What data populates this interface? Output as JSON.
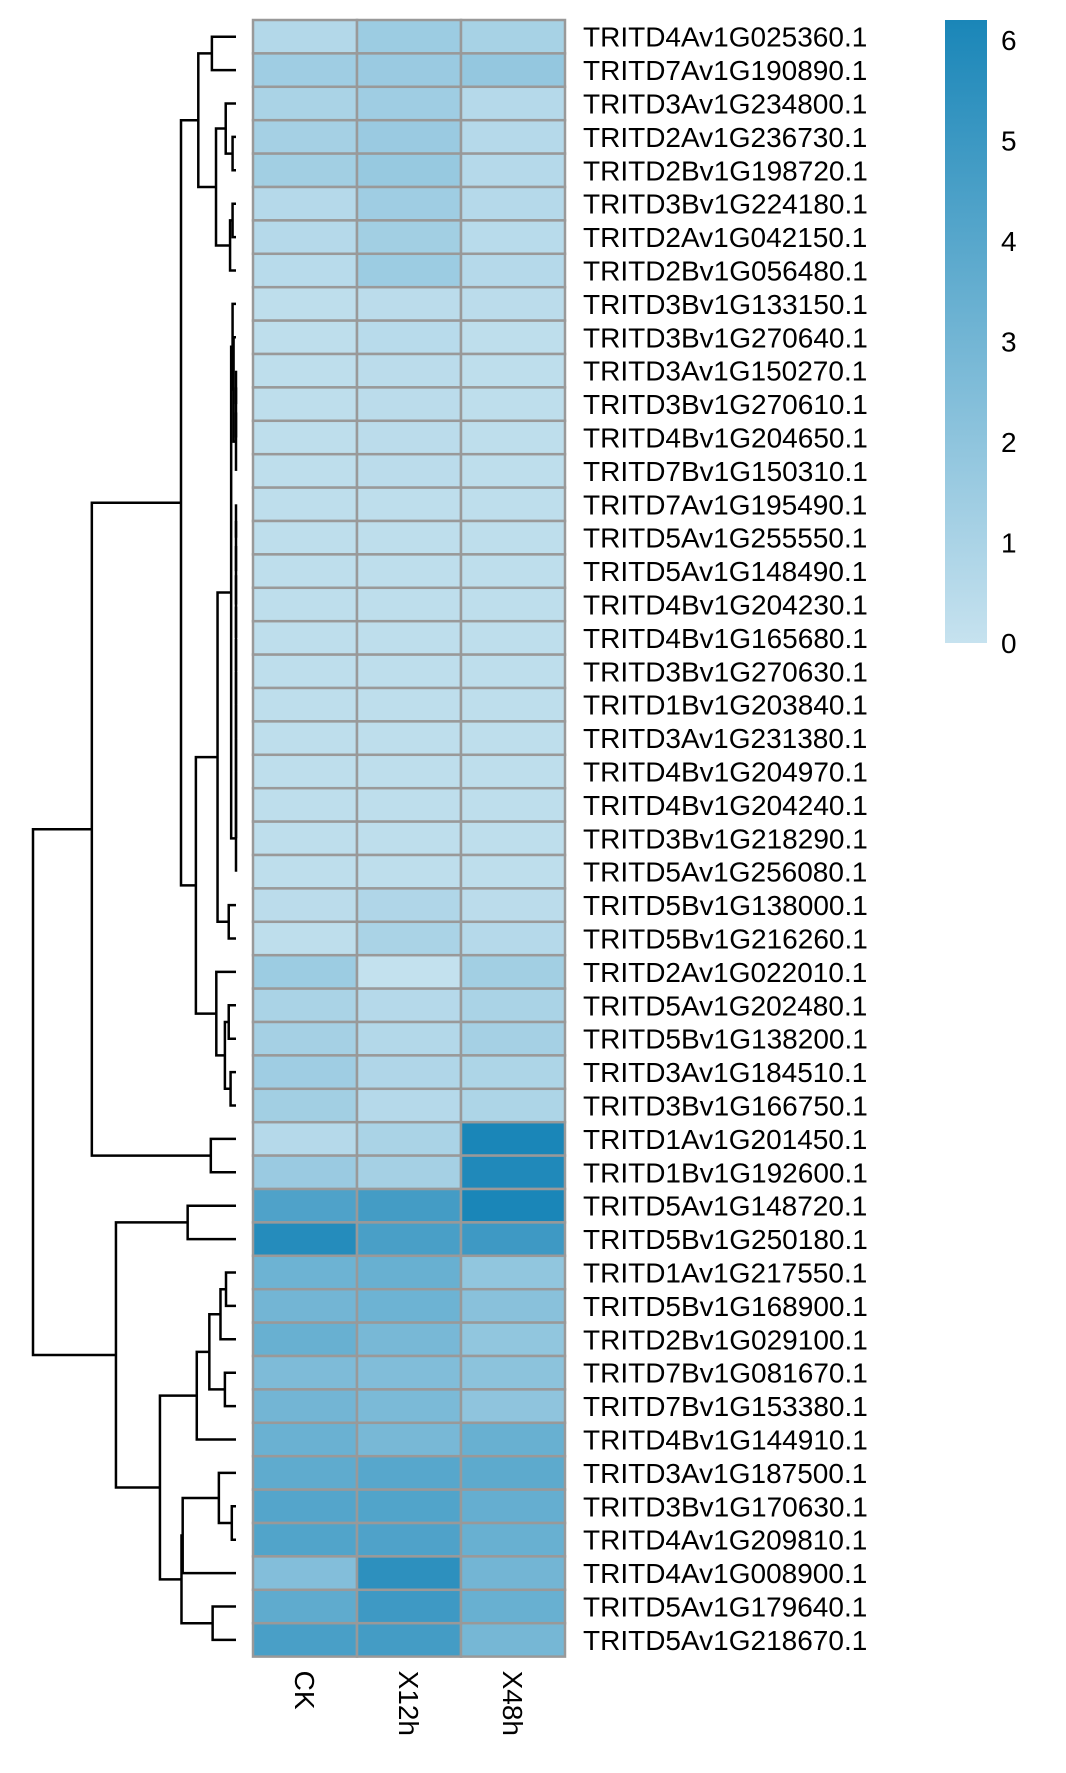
{
  "chart_data": {
    "type": "heatmap",
    "columns": [
      "CK",
      "X12h",
      "X48h"
    ],
    "rows": [
      "TRITD4Av1G025360.1",
      "TRITD7Av1G190890.1",
      "TRITD3Av1G234800.1",
      "TRITD2Av1G236730.1",
      "TRITD2Bv1G198720.1",
      "TRITD3Bv1G224180.1",
      "TRITD2Av1G042150.1",
      "TRITD2Bv1G056480.1",
      "TRITD3Bv1G133150.1",
      "TRITD3Bv1G270640.1",
      "TRITD3Av1G150270.1",
      "TRITD3Bv1G270610.1",
      "TRITD4Bv1G204650.1",
      "TRITD7Bv1G150310.1",
      "TRITD7Av1G195490.1",
      "TRITD5Av1G255550.1",
      "TRITD5Av1G148490.1",
      "TRITD4Bv1G204230.1",
      "TRITD4Bv1G165680.1",
      "TRITD3Bv1G270630.1",
      "TRITD1Bv1G203840.1",
      "TRITD3Av1G231380.1",
      "TRITD4Bv1G204970.1",
      "TRITD4Bv1G204240.1",
      "TRITD3Bv1G218290.1",
      "TRITD5Av1G256080.1",
      "TRITD5Bv1G138000.1",
      "TRITD5Bv1G216260.1",
      "TRITD2Av1G022010.1",
      "TRITD5Av1G202480.1",
      "TRITD5Bv1G138200.1",
      "TRITD3Av1G184510.1",
      "TRITD3Bv1G166750.1",
      "TRITD1Av1G201450.1",
      "TRITD1Bv1G192600.1",
      "TRITD5Av1G148720.1",
      "TRITD5Bv1G250180.1",
      "TRITD1Av1G217550.1",
      "TRITD5Bv1G168900.1",
      "TRITD2Bv1G029100.1",
      "TRITD7Bv1G081670.1",
      "TRITD7Bv1G153380.1",
      "TRITD4Bv1G144910.1",
      "TRITD3Av1G187500.1",
      "TRITD3Bv1G170630.1",
      "TRITD4Av1G209810.1",
      "TRITD4Av1G008900.1",
      "TRITD5Av1G179640.1",
      "TRITD5Av1G218670.1"
    ],
    "values": [
      [
        0.7,
        1.5,
        1.1
      ],
      [
        1.4,
        1.6,
        1.8
      ],
      [
        1.0,
        1.4,
        0.6
      ],
      [
        1.2,
        1.6,
        0.6
      ],
      [
        1.3,
        1.7,
        0.6
      ],
      [
        0.6,
        1.4,
        0.6
      ],
      [
        0.6,
        1.3,
        0.5
      ],
      [
        0.5,
        1.5,
        0.6
      ],
      [
        0.3,
        0.4,
        0.4
      ],
      [
        0.3,
        0.5,
        0.3
      ],
      [
        0.3,
        0.4,
        0.3
      ],
      [
        0.3,
        0.4,
        0.3
      ],
      [
        0.3,
        0.4,
        0.3
      ],
      [
        0.3,
        0.4,
        0.3
      ],
      [
        0.3,
        0.3,
        0.3
      ],
      [
        0.3,
        0.3,
        0.3
      ],
      [
        0.3,
        0.3,
        0.3
      ],
      [
        0.3,
        0.3,
        0.3
      ],
      [
        0.3,
        0.3,
        0.3
      ],
      [
        0.3,
        0.3,
        0.3
      ],
      [
        0.3,
        0.3,
        0.3
      ],
      [
        0.3,
        0.3,
        0.3
      ],
      [
        0.3,
        0.3,
        0.3
      ],
      [
        0.3,
        0.3,
        0.3
      ],
      [
        0.3,
        0.3,
        0.3
      ],
      [
        0.3,
        0.3,
        0.3
      ],
      [
        0.4,
        0.8,
        0.4
      ],
      [
        0.3,
        1.0,
        0.6
      ],
      [
        1.5,
        0.1,
        1.3
      ],
      [
        1.0,
        0.6,
        1.0
      ],
      [
        1.2,
        0.7,
        1.2
      ],
      [
        1.4,
        0.8,
        0.9
      ],
      [
        1.3,
        0.6,
        0.9
      ],
      [
        0.6,
        1.0,
        6.2
      ],
      [
        1.6,
        1.2,
        6.0
      ],
      [
        4.3,
        4.7,
        6.2
      ],
      [
        5.8,
        4.5,
        4.9
      ],
      [
        3.2,
        3.4,
        1.9
      ],
      [
        3.0,
        3.2,
        2.2
      ],
      [
        3.4,
        2.8,
        1.9
      ],
      [
        2.6,
        2.5,
        2.1
      ],
      [
        3.0,
        2.7,
        2.0
      ],
      [
        3.3,
        2.8,
        3.4
      ],
      [
        3.7,
        4.0,
        3.8
      ],
      [
        4.1,
        4.2,
        3.5
      ],
      [
        4.2,
        4.3,
        3.4
      ],
      [
        2.4,
        5.5,
        3.0
      ],
      [
        3.7,
        4.9,
        3.4
      ],
      [
        4.5,
        4.7,
        2.9
      ]
    ],
    "legend": {
      "min": 0,
      "max": 6.2,
      "ticks": [
        "0",
        "1",
        "2",
        "3",
        "4",
        "5",
        "6"
      ],
      "color_low": "#c6e2ef",
      "color_high": "#1a86b8",
      "placement": "top-right"
    }
  }
}
